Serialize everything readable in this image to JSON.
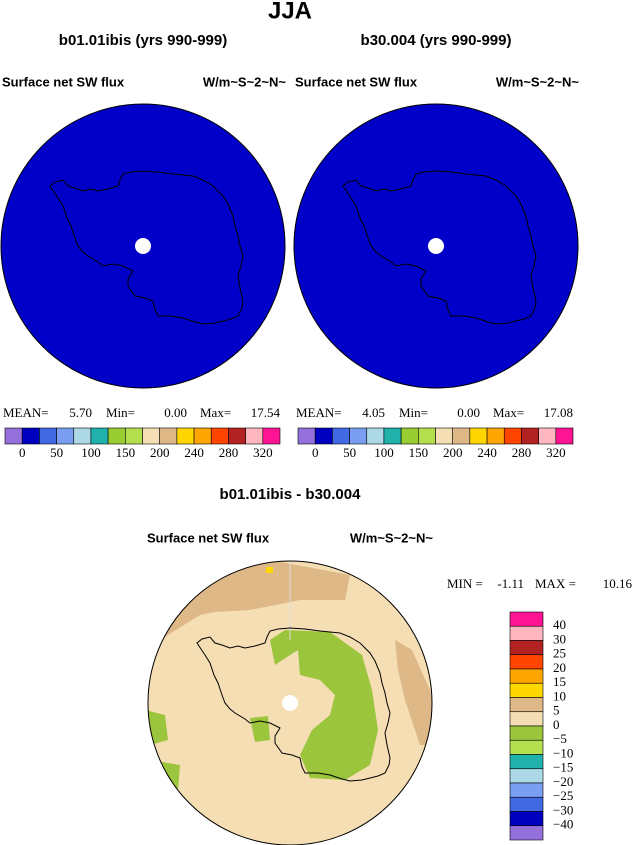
{
  "title": "JJA",
  "panels": [
    {
      "title": "b01.01ibis (yrs 990-999)",
      "left_label": "Surface net SW flux",
      "right_label": "W/m~S~2~N~",
      "stats": [
        "MEAN=",
        "5.70",
        "Min=",
        "0.00",
        "Max=",
        "17.54"
      ],
      "colorbar": {
        "labels": [
          "0",
          "50",
          "100",
          "150",
          "200",
          "240",
          "280",
          "320"
        ]
      }
    },
    {
      "title": "b30.004 (yrs 990-999)",
      "left_label": "Surface net SW flux",
      "right_label": "W/m~S~2~N~",
      "stats": [
        "MEAN=",
        "4.05",
        "Min=",
        "0.00",
        "Max=",
        "17.08"
      ],
      "colorbar": {
        "labels": [
          "0",
          "50",
          "100",
          "150",
          "200",
          "240",
          "280",
          "320"
        ]
      }
    }
  ],
  "difference": {
    "title": "b01.01ibis - b30.004",
    "left_label": "Surface net SW flux",
    "right_label": "W/m~S~2~N~",
    "stats": [
      "MIN =",
      "-1.11",
      "MAX =",
      "10.16"
    ],
    "colorbar": {
      "labels": [
        "40",
        "30",
        "25",
        "20",
        "15",
        "10",
        "5",
        "0",
        "−5",
        "−10",
        "−15",
        "−20",
        "−25",
        "−30",
        "−40"
      ]
    }
  }
}
